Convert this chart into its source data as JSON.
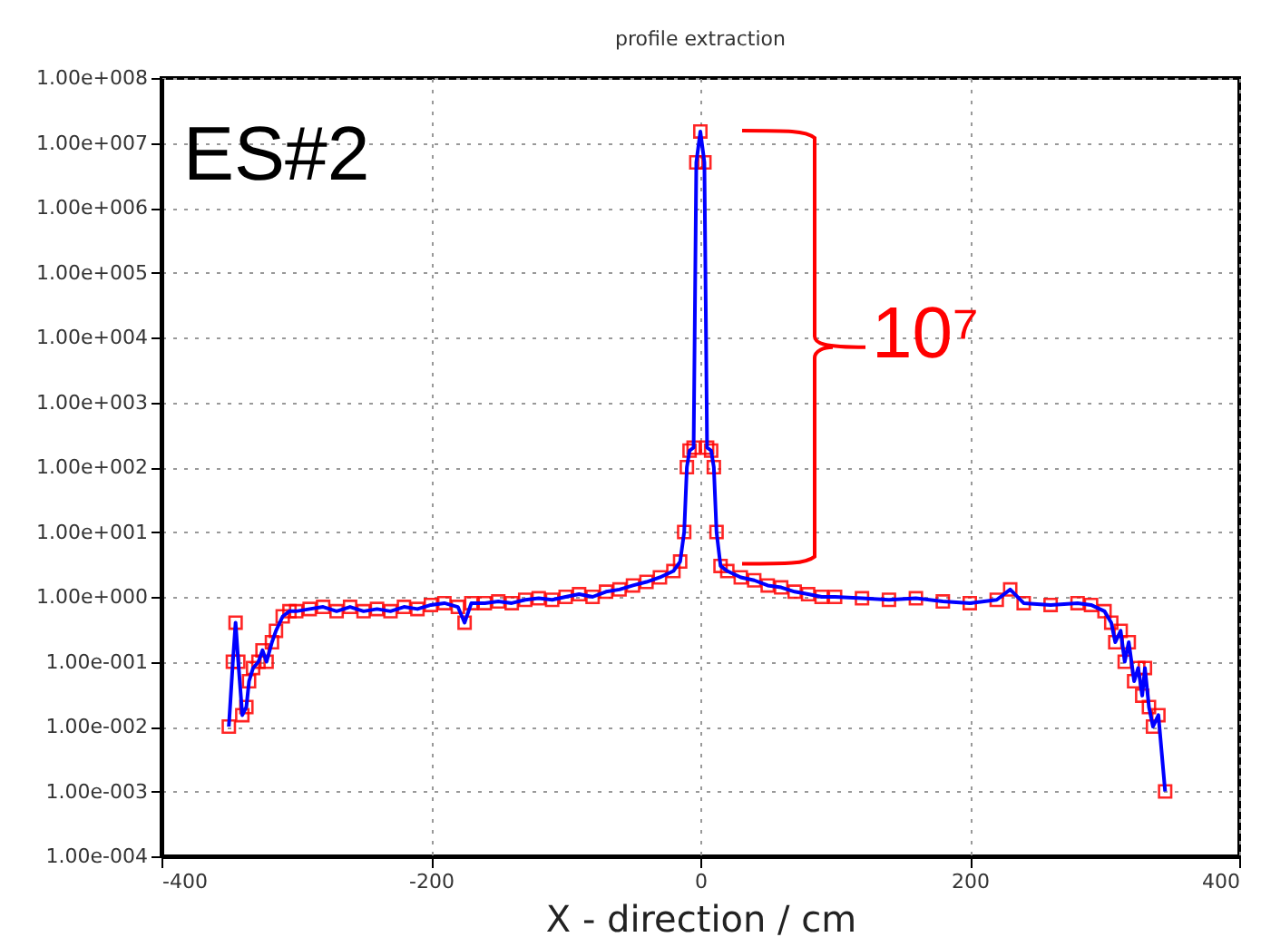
{
  "chart_data": {
    "type": "line",
    "title": "profile extraction",
    "xlabel": "X - direction / cm",
    "annotations": [
      "ES#2",
      "10⁷"
    ],
    "xlim": [
      -400,
      400
    ],
    "xticks": [
      -400,
      -200,
      0,
      200,
      400
    ],
    "ylim": [
      0.0001,
      100000000
    ],
    "log": "y",
    "yticks": [
      {
        "value": 0.0001,
        "label": "1.00e-004"
      },
      {
        "value": 0.001,
        "label": "1.00e-003"
      },
      {
        "value": 0.01,
        "label": "1.00e-002"
      },
      {
        "value": 0.1,
        "label": "1.00e-001"
      },
      {
        "value": 1,
        "label": "1.00e+000"
      },
      {
        "value": 10,
        "label": "1.00e+001"
      },
      {
        "value": 100,
        "label": "1.00e+002"
      },
      {
        "value": 1000,
        "label": "1.00e+003"
      },
      {
        "value": 10000,
        "label": "1.00e+004"
      },
      {
        "value": 100000,
        "label": "1.00e+005"
      },
      {
        "value": 1000000,
        "label": "1.00e+006"
      },
      {
        "value": 10000000,
        "label": "1.00e+007"
      },
      {
        "value": 100000000,
        "label": "1.00e+008"
      }
    ],
    "grid": true,
    "line_style": "solid",
    "x": [
      -350,
      -347,
      -345,
      -343,
      -340,
      -337,
      -335,
      -332,
      -328,
      -325,
      -322,
      -318,
      -315,
      -310,
      -305,
      -300,
      -290,
      -280,
      -270,
      -260,
      -250,
      -240,
      -230,
      -220,
      -210,
      -200,
      -190,
      -180,
      -175,
      -170,
      -160,
      -150,
      -140,
      -130,
      -120,
      -110,
      -100,
      -90,
      -80,
      -70,
      -60,
      -50,
      -40,
      -30,
      -20,
      -15,
      -12,
      -10,
      -8,
      -5,
      -3,
      0,
      3,
      5,
      8,
      10,
      12,
      15,
      20,
      30,
      40,
      50,
      60,
      70,
      80,
      90,
      100,
      120,
      140,
      160,
      180,
      200,
      220,
      230,
      240,
      260,
      280,
      290,
      300,
      305,
      308,
      312,
      315,
      318,
      322,
      325,
      328,
      330,
      333,
      336,
      340,
      345
    ],
    "series": [
      {
        "type": "scatter",
        "marker": "square",
        "color": "#ff0000",
        "values": [
          0.01,
          0.1,
          0.4,
          0.1,
          0.015,
          0.02,
          0.05,
          0.08,
          0.1,
          0.15,
          0.1,
          0.2,
          0.3,
          0.5,
          0.6,
          0.6,
          0.65,
          0.7,
          0.6,
          0.7,
          0.6,
          0.65,
          0.6,
          0.7,
          0.65,
          0.75,
          0.8,
          0.7,
          0.4,
          0.8,
          0.8,
          0.85,
          0.8,
          0.9,
          0.95,
          0.9,
          1.0,
          1.1,
          1.0,
          1.2,
          1.3,
          1.5,
          1.7,
          2.0,
          2.5,
          3.5,
          10,
          100,
          180,
          200,
          5000000,
          15000000,
          5000000,
          200,
          180,
          100,
          10,
          3,
          2.5,
          2,
          1.8,
          1.5,
          1.4,
          1.2,
          1.1,
          1.0,
          1.0,
          0.95,
          0.9,
          0.95,
          0.85,
          0.8,
          0.9,
          1.3,
          0.8,
          0.75,
          0.8,
          0.75,
          0.6,
          0.4,
          0.2,
          0.3,
          0.1,
          0.2,
          0.05,
          0.08,
          0.03,
          0.08,
          0.02,
          0.01,
          0.015,
          0.001
        ]
      },
      {
        "color": "#0000ff",
        "values": [
          0.01,
          0.1,
          0.4,
          0.1,
          0.015,
          0.02,
          0.05,
          0.08,
          0.1,
          0.15,
          0.1,
          0.2,
          0.3,
          0.5,
          0.6,
          0.6,
          0.65,
          0.7,
          0.6,
          0.7,
          0.6,
          0.65,
          0.6,
          0.7,
          0.65,
          0.75,
          0.8,
          0.7,
          0.4,
          0.8,
          0.8,
          0.85,
          0.8,
          0.9,
          0.95,
          0.9,
          1.0,
          1.1,
          1.0,
          1.2,
          1.3,
          1.5,
          1.7,
          2.0,
          2.5,
          3.5,
          10,
          100,
          180,
          200,
          5000000,
          15000000,
          5000000,
          200,
          180,
          100,
          10,
          3,
          2.5,
          2,
          1.8,
          1.5,
          1.4,
          1.2,
          1.1,
          1.0,
          1.0,
          0.95,
          0.9,
          0.95,
          0.85,
          0.8,
          0.9,
          1.3,
          0.8,
          0.75,
          0.8,
          0.75,
          0.6,
          0.4,
          0.2,
          0.3,
          0.1,
          0.2,
          0.05,
          0.08,
          0.03,
          0.08,
          0.02,
          0.01,
          0.015,
          0.001
        ]
      }
    ]
  }
}
